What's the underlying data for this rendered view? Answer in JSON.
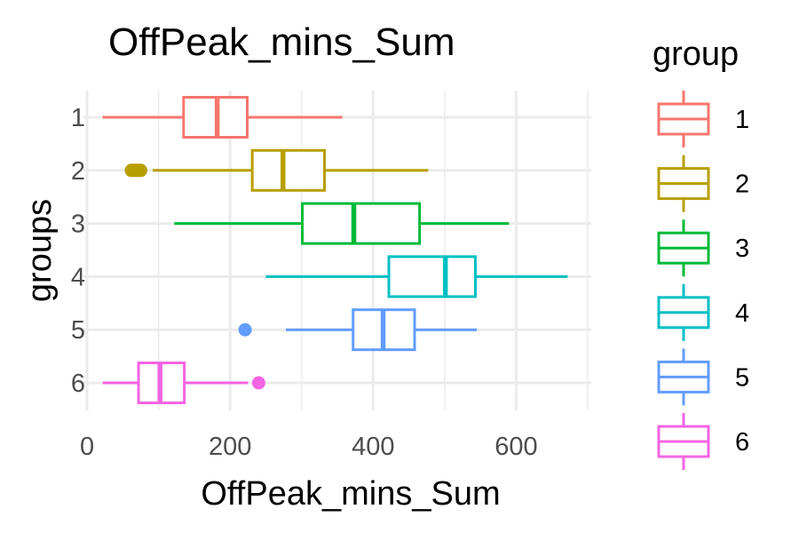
{
  "chart_data": {
    "type": "boxplot",
    "orientation": "horizontal",
    "title": "OffPeak_mins_Sum",
    "xlabel": "OffPeak_mins_Sum",
    "ylabel": "groups",
    "xlim": [
      -5,
      705
    ],
    "xticks": [
      0,
      200,
      400,
      600
    ],
    "x_tick_labels": [
      "0",
      "200",
      "400",
      "600"
    ],
    "categories": [
      "1",
      "2",
      "3",
      "4",
      "5",
      "6"
    ],
    "grid": true,
    "legend": {
      "title": "group",
      "position": "right"
    },
    "series": [
      {
        "name": "1",
        "color": "#F8766D",
        "whisker_low": 22,
        "q1": 135,
        "median": 182,
        "q3": 224,
        "whisker_high": 357,
        "outliers": []
      },
      {
        "name": "2",
        "color": "#B79F00",
        "whisker_low": 92,
        "q1": 231,
        "median": 274,
        "q3": 332,
        "whisker_high": 477,
        "outliers": [
          62,
          65,
          68,
          70,
          72,
          75
        ]
      },
      {
        "name": "3",
        "color": "#00BA38",
        "whisker_low": 122,
        "q1": 301,
        "median": 373,
        "q3": 465,
        "whisker_high": 590,
        "outliers": []
      },
      {
        "name": "4",
        "color": "#00BFC4",
        "whisker_low": 250,
        "q1": 422,
        "median": 501,
        "q3": 543,
        "whisker_high": 672,
        "outliers": []
      },
      {
        "name": "5",
        "color": "#619CFF",
        "whisker_low": 278,
        "q1": 372,
        "median": 414,
        "q3": 458,
        "whisker_high": 545,
        "outliers": [
          221
        ]
      },
      {
        "name": "6",
        "color": "#F564E3",
        "whisker_low": 22,
        "q1": 72,
        "median": 102,
        "q3": 136,
        "whisker_high": 225,
        "outliers": [
          240
        ]
      }
    ]
  }
}
